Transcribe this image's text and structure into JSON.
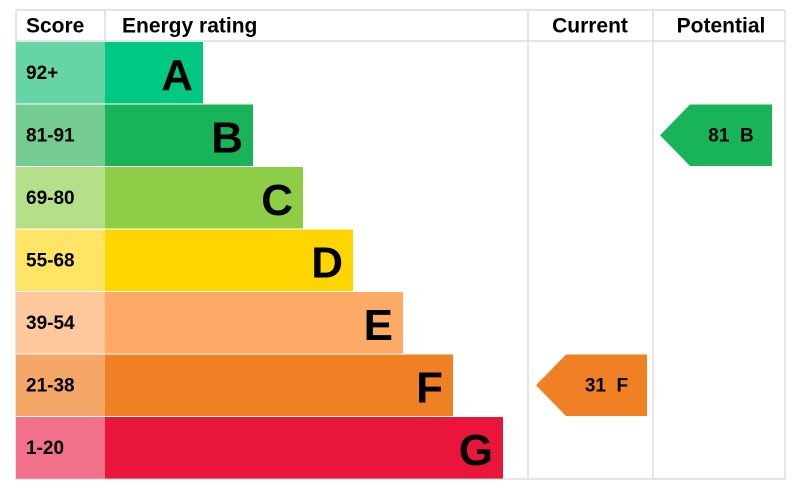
{
  "header": {
    "score": "Score",
    "rating": "Energy rating",
    "current": "Current",
    "potential": "Potential"
  },
  "bands": [
    {
      "range": "92+",
      "letter": "A",
      "color": "#00c781",
      "score_color": "#66d4a6"
    },
    {
      "range": "81-91",
      "letter": "B",
      "color": "#19b459",
      "score_color": "#74cc90"
    },
    {
      "range": "69-80",
      "letter": "C",
      "color": "#8dce46",
      "score_color": "#b5e08a"
    },
    {
      "range": "55-68",
      "letter": "D",
      "color": "#ffd500",
      "score_color": "#ffe466"
    },
    {
      "range": "39-54",
      "letter": "E",
      "color": "#fcaa65",
      "score_color": "#fdc89b"
    },
    {
      "range": "21-38",
      "letter": "F",
      "color": "#ef8023",
      "score_color": "#f4a766"
    },
    {
      "range": "1-20",
      "letter": "G",
      "color": "#e9153b",
      "score_color": "#f07189"
    }
  ],
  "current": {
    "score": 31,
    "band": "F"
  },
  "potential": {
    "score": 81,
    "band": "B"
  }
}
